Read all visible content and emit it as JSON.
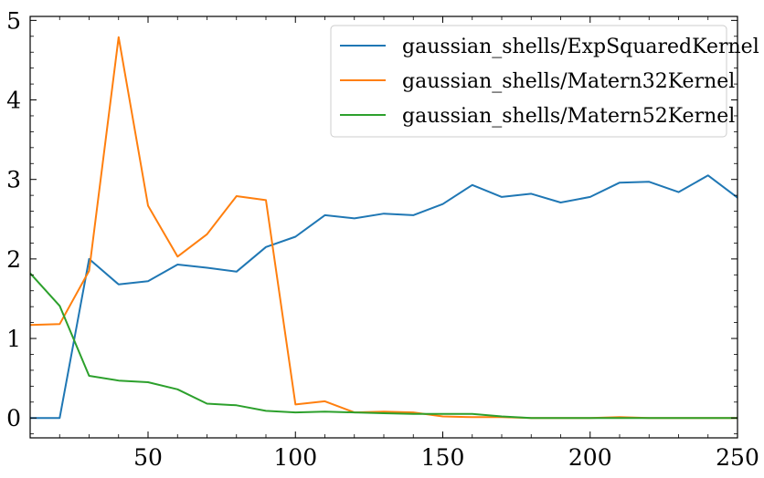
{
  "chart_data": {
    "type": "line",
    "title": "",
    "xlabel": "",
    "ylabel": "",
    "xlim": [
      10,
      250
    ],
    "ylim": [
      -0.25,
      5.05
    ],
    "xticks": [
      50,
      100,
      150,
      200,
      250
    ],
    "yticks": [
      0,
      1,
      2,
      3,
      4,
      5
    ],
    "grid": false,
    "legend_position": "top-right",
    "x": [
      10,
      20,
      30,
      40,
      50,
      60,
      70,
      80,
      90,
      100,
      110,
      120,
      130,
      140,
      150,
      160,
      170,
      180,
      190,
      200,
      210,
      220,
      230,
      240,
      250
    ],
    "series": [
      {
        "name": "gaussian_shells/ExpSquaredKernel",
        "color": "#1f77b4",
        "values": [
          0.0,
          0.0,
          2.0,
          1.68,
          1.72,
          1.93,
          1.89,
          1.84,
          2.15,
          2.28,
          2.55,
          2.51,
          2.57,
          2.55,
          2.69,
          2.93,
          2.78,
          2.82,
          2.71,
          2.78,
          2.96,
          2.97,
          2.84,
          3.05,
          2.77
        ]
      },
      {
        "name": "gaussian_shells/Matern32Kernel",
        "color": "#ff7f0e",
        "values": [
          1.17,
          1.18,
          1.85,
          4.79,
          2.67,
          2.03,
          2.31,
          2.79,
          2.74,
          0.17,
          0.21,
          0.07,
          0.08,
          0.07,
          0.02,
          0.01,
          0.01,
          0.0,
          0.0,
          0.0,
          0.01,
          0.0,
          0.0,
          0.0,
          0.0
        ]
      },
      {
        "name": "gaussian_shells/Matern52Kernel",
        "color": "#2ca02c",
        "values": [
          1.82,
          1.41,
          0.53,
          0.47,
          0.45,
          0.36,
          0.18,
          0.16,
          0.09,
          0.07,
          0.08,
          0.07,
          0.06,
          0.05,
          0.05,
          0.05,
          0.02,
          0.0,
          0.0,
          0.0,
          0.0,
          0.0,
          0.0,
          0.0,
          0.0
        ]
      }
    ]
  }
}
